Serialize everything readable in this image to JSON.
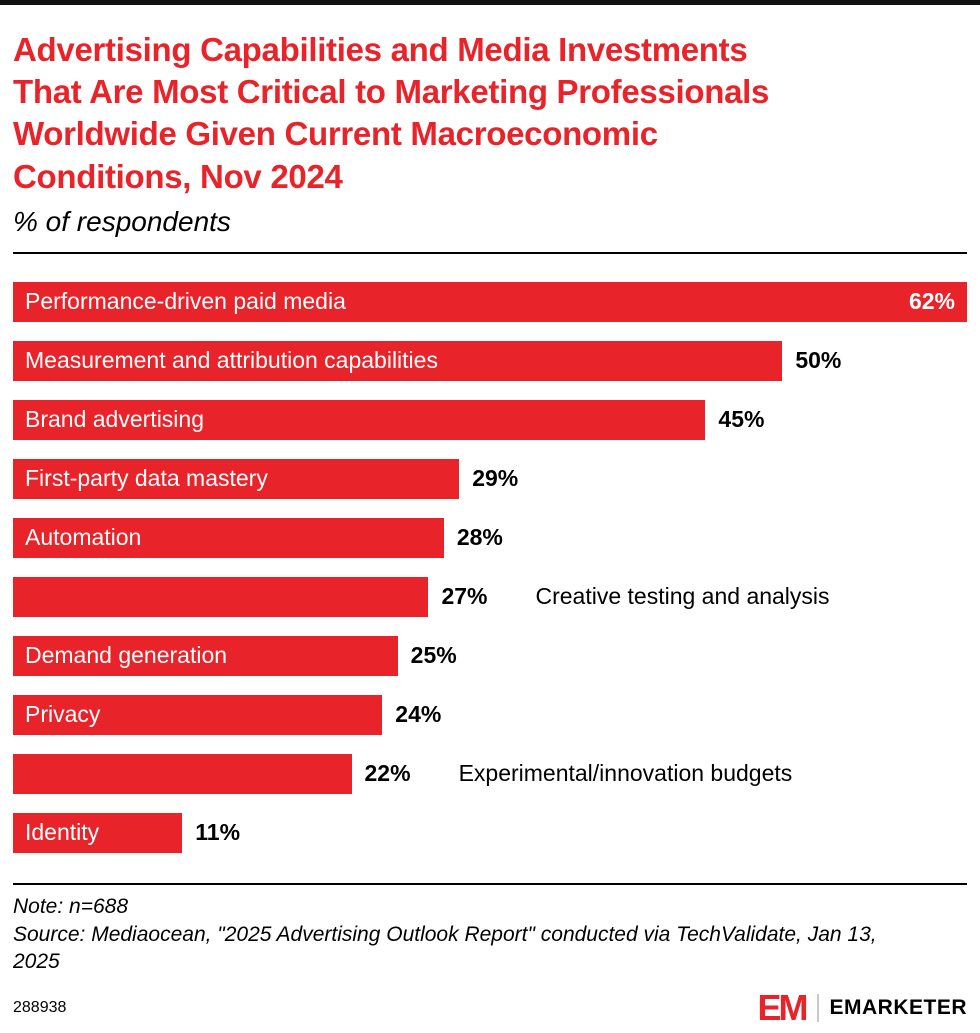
{
  "page": {
    "title_lines": [
      "Advertising Capabilities and Media Investments",
      "That Are Most Critical to Marketing Professionals",
      "Worldwide Given Current Macroeconomic",
      "Conditions, Nov 2024"
    ],
    "subtitle": "% of respondents"
  },
  "chart_data": {
    "type": "bar",
    "orientation": "horizontal",
    "title": "Advertising Capabilities and Media Investments That Are Most Critical to Marketing Professionals Worldwide Given Current Macroeconomic Conditions, Nov 2024",
    "subtitle": "% of respondents",
    "unit": "%",
    "xlim": [
      0,
      62
    ],
    "bar_color": "#e8232a",
    "grid": false,
    "legend": "none",
    "categories": [
      "Performance-driven paid media",
      "Measurement and attribution capabilities",
      "Brand advertising",
      "First-party data mastery",
      "Automation",
      "Creative testing and analysis",
      "Demand generation",
      "Privacy",
      "Experimental/innovation budgets",
      "Identity"
    ],
    "values": [
      62,
      50,
      45,
      29,
      28,
      27,
      25,
      24,
      22,
      11
    ],
    "bars": [
      {
        "label": "Performance-driven paid media",
        "value": 62,
        "value_label": "62%",
        "label_position": "inside",
        "value_position": "inside"
      },
      {
        "label": "Measurement and attribution capabilities",
        "value": 50,
        "value_label": "50%",
        "label_position": "inside",
        "value_position": "outside"
      },
      {
        "label": "Brand advertising",
        "value": 45,
        "value_label": "45%",
        "label_position": "inside",
        "value_position": "outside"
      },
      {
        "label": "First-party data mastery",
        "value": 29,
        "value_label": "29%",
        "label_position": "inside",
        "value_position": "outside"
      },
      {
        "label": "Automation",
        "value": 28,
        "value_label": "28%",
        "label_position": "inside",
        "value_position": "outside"
      },
      {
        "label": "Creative testing and analysis",
        "value": 27,
        "value_label": "27%",
        "label_position": "outside",
        "value_position": "outside"
      },
      {
        "label": "Demand generation",
        "value": 25,
        "value_label": "25%",
        "label_position": "inside",
        "value_position": "outside"
      },
      {
        "label": "Privacy",
        "value": 24,
        "value_label": "24%",
        "label_position": "inside",
        "value_position": "outside"
      },
      {
        "label": "Experimental/innovation budgets",
        "value": 22,
        "value_label": "22%",
        "label_position": "outside",
        "value_position": "outside"
      },
      {
        "label": "Identity",
        "value": 11,
        "value_label": "11%",
        "label_position": "inside",
        "value_position": "outside"
      }
    ]
  },
  "notes": {
    "note": "Note: n=688",
    "source_lines": [
      "Source: Mediaocean, \"2025 Advertising Outlook Report\" conducted via TechValidate, Jan 13,",
      "2025"
    ]
  },
  "footer": {
    "chart_id": "288938",
    "logo_em": "EM",
    "logo_name": "EMARKETER"
  },
  "colors": {
    "accent_red": "#e8232a",
    "top_border": "#111111",
    "text": "#000000"
  }
}
